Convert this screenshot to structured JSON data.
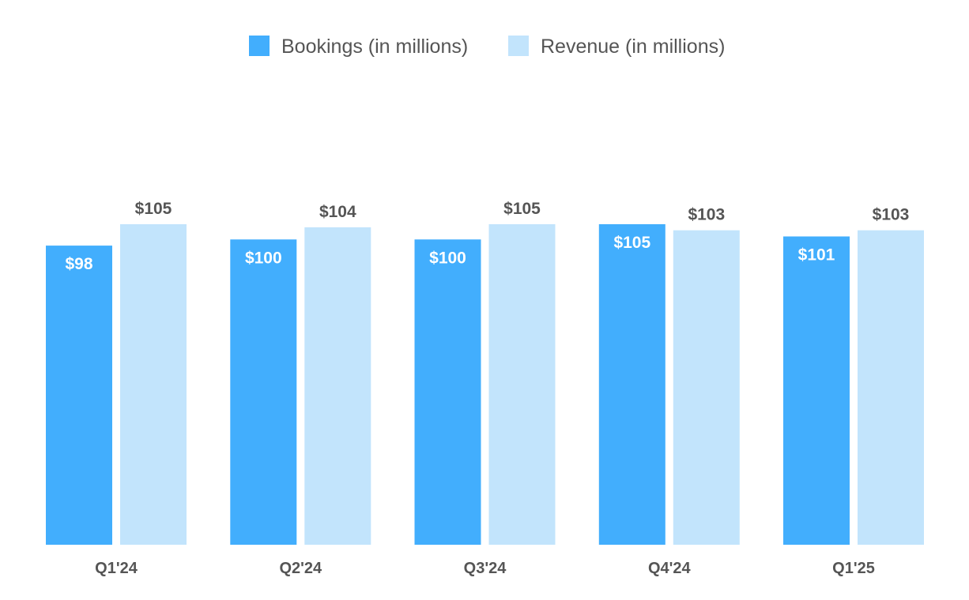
{
  "chart_data": {
    "type": "bar",
    "categories": [
      "Q1'24",
      "Q2'24",
      "Q3'24",
      "Q4'24",
      "Q1'25"
    ],
    "series": [
      {
        "name": "Bookings (in millions)",
        "values": [
          98,
          100,
          100,
          105,
          101
        ],
        "labels": [
          "$98",
          "$100",
          "$100",
          "$105",
          "$101"
        ],
        "color": "#42aefd",
        "label_position": "inside"
      },
      {
        "name": "Revenue (in millions)",
        "values": [
          105,
          104,
          105,
          103,
          103
        ],
        "labels": [
          "$105",
          "$104",
          "$105",
          "$103",
          "$103"
        ],
        "color": "#c2e4fc",
        "label_position": "above"
      }
    ],
    "ylim": [
      0,
      105
    ],
    "grid": false,
    "legend": "top-center"
  }
}
